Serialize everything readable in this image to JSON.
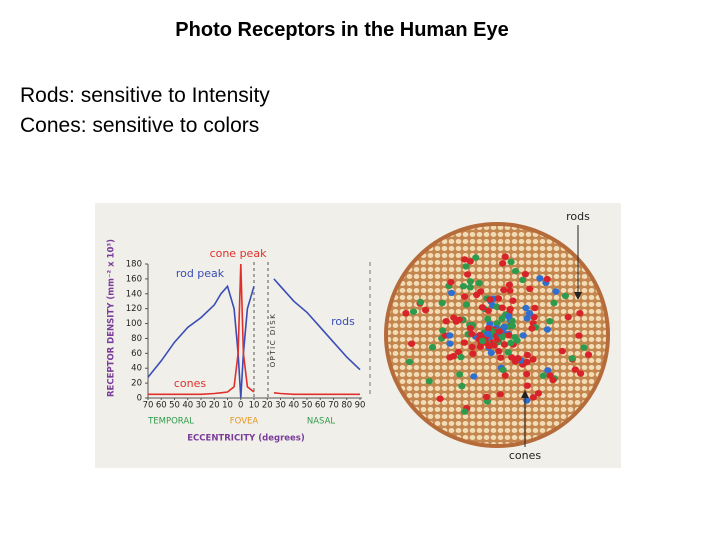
{
  "title": "Photo Receptors in the Human Eye",
  "lines": [
    {
      "term": "Rods",
      "text": ": sensitive to Intensity"
    },
    {
      "term": "Cones",
      "text": ": sensitive to colors"
    }
  ],
  "figure": {
    "chart_data": {
      "type": "line",
      "y_label": "RECEPTOR DENSITY (mm⁻² x 10³)",
      "x_label": "ECCENTRICITY (degrees)",
      "annotations": [
        "cone peak",
        "rod peak"
      ],
      "optic_disk_label": "OPTIC DISK",
      "region_labels": [
        "TEMPORAL",
        "FOVEA",
        "NASAL"
      ],
      "xlim": [
        -70,
        90
      ],
      "ylim": [
        0,
        180
      ],
      "xticks": [
        {
          "value": -70,
          "label": "70"
        },
        {
          "value": -60,
          "label": "60"
        },
        {
          "value": -50,
          "label": "50"
        },
        {
          "value": -40,
          "label": "40"
        },
        {
          "value": -30,
          "label": "30"
        },
        {
          "value": -20,
          "label": "20"
        },
        {
          "value": -10,
          "label": "10"
        },
        0,
        10,
        20,
        30,
        40,
        50,
        60,
        70,
        80,
        90
      ],
      "yticks": [
        0,
        20,
        40,
        60,
        80,
        100,
        120,
        140,
        160,
        180
      ],
      "x": [
        -70,
        -60,
        -50,
        -40,
        -30,
        -20,
        -15,
        -10,
        -5,
        -2,
        0,
        2,
        5,
        10,
        15,
        20,
        25,
        30,
        40,
        50,
        60,
        70,
        80,
        90
      ],
      "series": [
        {
          "name": "rods",
          "color": "#3a4db5",
          "values": [
            28,
            50,
            75,
            95,
            108,
            125,
            140,
            150,
            120,
            60,
            0,
            60,
            120,
            150,
            null,
            null,
            160,
            150,
            130,
            115,
            95,
            75,
            55,
            38
          ]
        },
        {
          "name": "cones",
          "color": "#e0302b",
          "values": [
            5,
            5,
            5,
            5,
            5,
            6,
            7,
            8,
            15,
            60,
            180,
            60,
            15,
            8,
            null,
            null,
            7,
            6,
            5,
            5,
            5,
            5,
            5,
            5
          ]
        }
      ]
    },
    "retina_labels": [
      "rods",
      "cones"
    ]
  }
}
